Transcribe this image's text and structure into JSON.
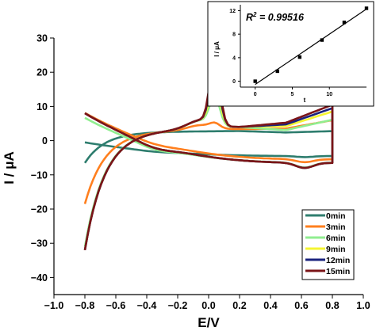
{
  "chart_data": [
    {
      "type": "line",
      "xlabel": "E/V",
      "ylabel": "I / μA",
      "xlim": [
        -1.0,
        1.0
      ],
      "ylim": [
        -45,
        30
      ],
      "xticks": [
        "−1.0",
        "−0.8",
        "−0.6",
        "−0.4",
        "−0.2",
        "0.0",
        "0.2",
        "0.4",
        "0.6",
        "0.8",
        "1.0"
      ],
      "yticks": [
        "−40",
        "−30",
        "−20",
        "−10",
        "0",
        "10",
        "20",
        "30"
      ],
      "legend_position": "bottom-right",
      "series": [
        {
          "name": "0min",
          "color": "#2e7d6e",
          "peak": 0,
          "forward_end": 3.5,
          "anodic_start": -6.5,
          "cathodic_end": -8.5
        },
        {
          "name": "3min",
          "color": "#ff7f1e",
          "peak": 5,
          "forward_end": 8,
          "anodic_start": -18.5,
          "cathodic_end": -19
        },
        {
          "name": "6min",
          "color": "#90ee90",
          "peak": 13,
          "forward_end": 9.5,
          "anodic_start": -31,
          "cathodic_end": -19.5
        },
        {
          "name": "9min",
          "color": "#f5f531",
          "peak": 17,
          "forward_end": 12,
          "anodic_start": -32,
          "cathodic_end": -21
        },
        {
          "name": "12min",
          "color": "#1a237e",
          "peak": 21,
          "forward_end": 13,
          "anodic_start": -32,
          "cathodic_end": -21
        },
        {
          "name": "15min",
          "color": "#7b1418",
          "peak": 24,
          "forward_end": 14,
          "anodic_start": -32,
          "cathodic_end": -21
        }
      ]
    },
    {
      "type": "scatter",
      "xlabel": "t",
      "ylabel": "I / μA",
      "annotation": "R² = 0.99516",
      "annotation_parts": {
        "r": "R",
        "sup": "2",
        "rest": " = 0.99516"
      },
      "xlim": [
        -2,
        15
      ],
      "ylim": [
        -1,
        13
      ],
      "xticks": [
        0,
        5,
        10
      ],
      "yticks": [
        0,
        4,
        8,
        12
      ],
      "x": [
        0,
        3,
        6,
        9,
        12,
        15
      ],
      "y": [
        0,
        1.7,
        4.1,
        7.0,
        10.0,
        12.4
      ],
      "xticklabels": [
        "0",
        "5",
        "10"
      ],
      "yticklabels": [
        "0",
        "4",
        "8",
        "12"
      ]
    }
  ]
}
